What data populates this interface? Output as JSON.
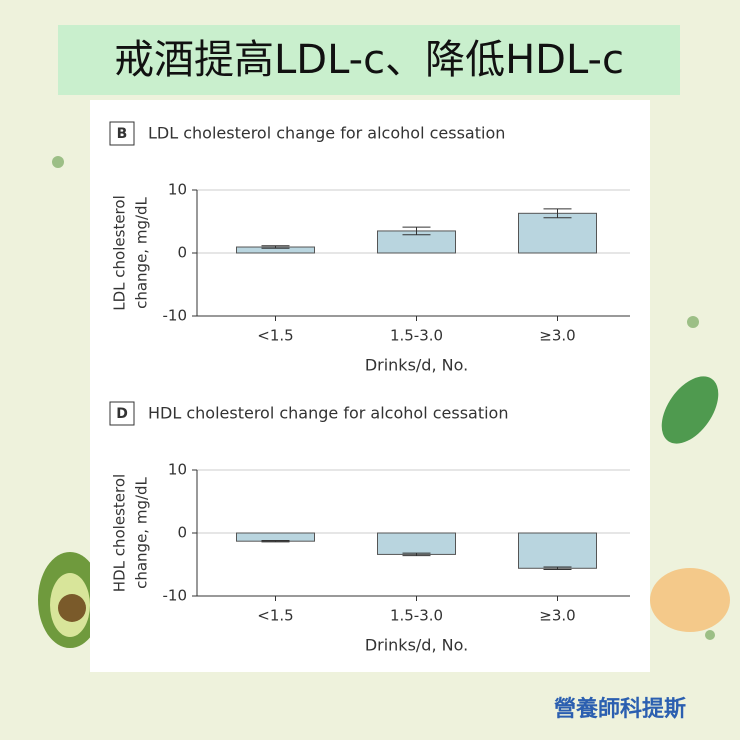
{
  "header": {
    "title": "戒酒提高LDL-c、降低HDL-c"
  },
  "footer": {
    "credit": "營養師科提斯"
  },
  "chart_data": [
    {
      "type": "bar",
      "panel": "B",
      "title": "LDL cholesterol change for alcohol cessation",
      "ylabel": [
        "LDL cholesterol",
        "change, mg/dL"
      ],
      "xlabel": "Drinks/d, No.",
      "categories": [
        "<1.5",
        "1.5-3.0",
        "≥3.0"
      ],
      "values": [
        0.95,
        3.5,
        6.3
      ],
      "errors": [
        0.2,
        0.6,
        0.7
      ],
      "color": "#b9d5df",
      "ylim": [
        -10,
        10
      ],
      "yticks": [
        -10,
        0,
        10
      ],
      "grid": true
    },
    {
      "type": "bar",
      "panel": "D",
      "title": "HDL cholesterol change for alcohol cessation",
      "ylabel": [
        "HDL cholesterol",
        "change, mg/dL"
      ],
      "xlabel": "Drinks/d, No.",
      "categories": [
        "<1.5",
        "1.5-3.0",
        "≥3.0"
      ],
      "values": [
        -1.3,
        -3.4,
        -5.6
      ],
      "errors": [
        0.1,
        0.2,
        0.2
      ],
      "color": "#b9d5df",
      "ylim": [
        -10,
        10
      ],
      "yticks": [
        -10,
        0,
        10
      ],
      "grid": true
    }
  ]
}
